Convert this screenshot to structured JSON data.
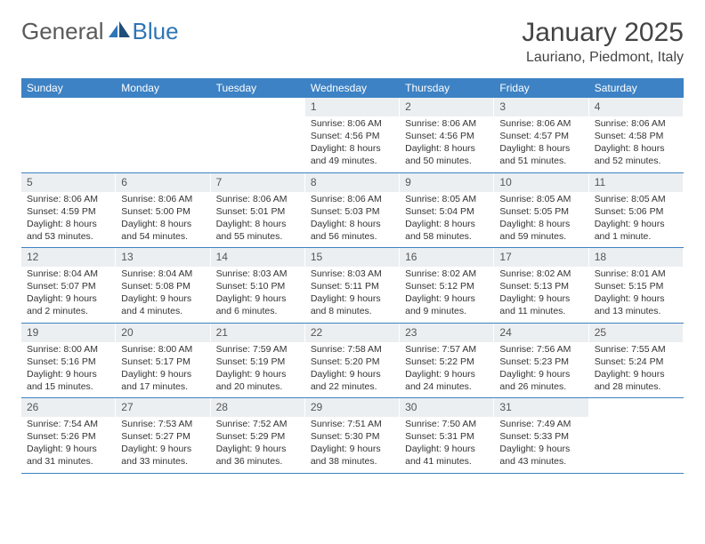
{
  "brand": {
    "part1": "General",
    "part2": "Blue"
  },
  "title": "January 2025",
  "location": "Lauriano, Piedmont, Italy",
  "colors": {
    "header_bg": "#3d82c4",
    "header_text": "#ffffff",
    "daynum_bg": "#eceff1",
    "border": "#3d82c4",
    "brand_gray": "#5a5a5a",
    "brand_blue": "#2e75b6"
  },
  "typography": {
    "title_fontsize": 30,
    "location_fontsize": 16,
    "dayheader_fontsize": 12,
    "cell_fontsize": 10.5
  },
  "labels": {
    "sunrise": "Sunrise:",
    "sunset": "Sunset:",
    "daylight": "Daylight:"
  },
  "day_headers": [
    "Sunday",
    "Monday",
    "Tuesday",
    "Wednesday",
    "Thursday",
    "Friday",
    "Saturday"
  ],
  "weeks": [
    [
      null,
      null,
      null,
      {
        "n": "1",
        "sr": "8:06 AM",
        "ss": "4:56 PM",
        "dl1": "8 hours",
        "dl2": "and 49 minutes."
      },
      {
        "n": "2",
        "sr": "8:06 AM",
        "ss": "4:56 PM",
        "dl1": "8 hours",
        "dl2": "and 50 minutes."
      },
      {
        "n": "3",
        "sr": "8:06 AM",
        "ss": "4:57 PM",
        "dl1": "8 hours",
        "dl2": "and 51 minutes."
      },
      {
        "n": "4",
        "sr": "8:06 AM",
        "ss": "4:58 PM",
        "dl1": "8 hours",
        "dl2": "and 52 minutes."
      }
    ],
    [
      {
        "n": "5",
        "sr": "8:06 AM",
        "ss": "4:59 PM",
        "dl1": "8 hours",
        "dl2": "and 53 minutes."
      },
      {
        "n": "6",
        "sr": "8:06 AM",
        "ss": "5:00 PM",
        "dl1": "8 hours",
        "dl2": "and 54 minutes."
      },
      {
        "n": "7",
        "sr": "8:06 AM",
        "ss": "5:01 PM",
        "dl1": "8 hours",
        "dl2": "and 55 minutes."
      },
      {
        "n": "8",
        "sr": "8:06 AM",
        "ss": "5:03 PM",
        "dl1": "8 hours",
        "dl2": "and 56 minutes."
      },
      {
        "n": "9",
        "sr": "8:05 AM",
        "ss": "5:04 PM",
        "dl1": "8 hours",
        "dl2": "and 58 minutes."
      },
      {
        "n": "10",
        "sr": "8:05 AM",
        "ss": "5:05 PM",
        "dl1": "8 hours",
        "dl2": "and 59 minutes."
      },
      {
        "n": "11",
        "sr": "8:05 AM",
        "ss": "5:06 PM",
        "dl1": "9 hours",
        "dl2": "and 1 minute."
      }
    ],
    [
      {
        "n": "12",
        "sr": "8:04 AM",
        "ss": "5:07 PM",
        "dl1": "9 hours",
        "dl2": "and 2 minutes."
      },
      {
        "n": "13",
        "sr": "8:04 AM",
        "ss": "5:08 PM",
        "dl1": "9 hours",
        "dl2": "and 4 minutes."
      },
      {
        "n": "14",
        "sr": "8:03 AM",
        "ss": "5:10 PM",
        "dl1": "9 hours",
        "dl2": "and 6 minutes."
      },
      {
        "n": "15",
        "sr": "8:03 AM",
        "ss": "5:11 PM",
        "dl1": "9 hours",
        "dl2": "and 8 minutes."
      },
      {
        "n": "16",
        "sr": "8:02 AM",
        "ss": "5:12 PM",
        "dl1": "9 hours",
        "dl2": "and 9 minutes."
      },
      {
        "n": "17",
        "sr": "8:02 AM",
        "ss": "5:13 PM",
        "dl1": "9 hours",
        "dl2": "and 11 minutes."
      },
      {
        "n": "18",
        "sr": "8:01 AM",
        "ss": "5:15 PM",
        "dl1": "9 hours",
        "dl2": "and 13 minutes."
      }
    ],
    [
      {
        "n": "19",
        "sr": "8:00 AM",
        "ss": "5:16 PM",
        "dl1": "9 hours",
        "dl2": "and 15 minutes."
      },
      {
        "n": "20",
        "sr": "8:00 AM",
        "ss": "5:17 PM",
        "dl1": "9 hours",
        "dl2": "and 17 minutes."
      },
      {
        "n": "21",
        "sr": "7:59 AM",
        "ss": "5:19 PM",
        "dl1": "9 hours",
        "dl2": "and 20 minutes."
      },
      {
        "n": "22",
        "sr": "7:58 AM",
        "ss": "5:20 PM",
        "dl1": "9 hours",
        "dl2": "and 22 minutes."
      },
      {
        "n": "23",
        "sr": "7:57 AM",
        "ss": "5:22 PM",
        "dl1": "9 hours",
        "dl2": "and 24 minutes."
      },
      {
        "n": "24",
        "sr": "7:56 AM",
        "ss": "5:23 PM",
        "dl1": "9 hours",
        "dl2": "and 26 minutes."
      },
      {
        "n": "25",
        "sr": "7:55 AM",
        "ss": "5:24 PM",
        "dl1": "9 hours",
        "dl2": "and 28 minutes."
      }
    ],
    [
      {
        "n": "26",
        "sr": "7:54 AM",
        "ss": "5:26 PM",
        "dl1": "9 hours",
        "dl2": "and 31 minutes."
      },
      {
        "n": "27",
        "sr": "7:53 AM",
        "ss": "5:27 PM",
        "dl1": "9 hours",
        "dl2": "and 33 minutes."
      },
      {
        "n": "28",
        "sr": "7:52 AM",
        "ss": "5:29 PM",
        "dl1": "9 hours",
        "dl2": "and 36 minutes."
      },
      {
        "n": "29",
        "sr": "7:51 AM",
        "ss": "5:30 PM",
        "dl1": "9 hours",
        "dl2": "and 38 minutes."
      },
      {
        "n": "30",
        "sr": "7:50 AM",
        "ss": "5:31 PM",
        "dl1": "9 hours",
        "dl2": "and 41 minutes."
      },
      {
        "n": "31",
        "sr": "7:49 AM",
        "ss": "5:33 PM",
        "dl1": "9 hours",
        "dl2": "and 43 minutes."
      },
      null
    ]
  ]
}
